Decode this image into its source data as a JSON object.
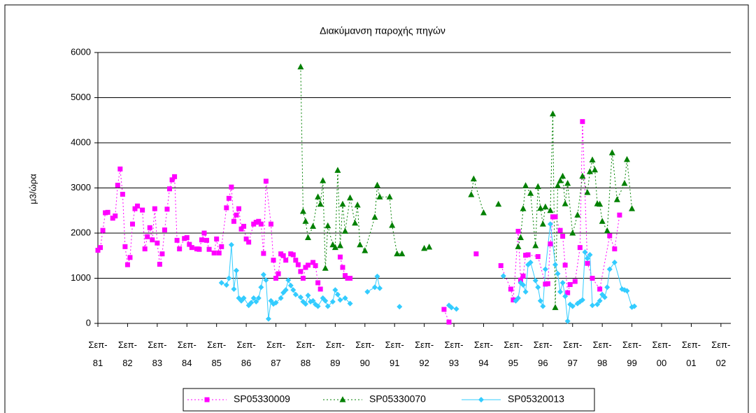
{
  "chart_data": {
    "type": "line",
    "title": "Διακύμανση παροχής πηγών",
    "ylabel": "μ3/ώρα",
    "xlim": [
      "1981-09",
      "2003-01"
    ],
    "xticks": [
      {
        "value": "1981-09",
        "label": "Σεπ-81"
      },
      {
        "value": "1982-09",
        "label": "Σεπ-82"
      },
      {
        "value": "1983-09",
        "label": "Σεπ-83"
      },
      {
        "value": "1984-09",
        "label": "Σεπ-84"
      },
      {
        "value": "1985-09",
        "label": "Σεπ-85"
      },
      {
        "value": "1986-09",
        "label": "Σεπ-86"
      },
      {
        "value": "1987-09",
        "label": "Σεπ-87"
      },
      {
        "value": "1988-09",
        "label": "Σεπ-88"
      },
      {
        "value": "1989-09",
        "label": "Σεπ-89"
      },
      {
        "value": "1990-09",
        "label": "Σεπ-90"
      },
      {
        "value": "1991-09",
        "label": "Σεπ-91"
      },
      {
        "value": "1992-09",
        "label": "Σεπ-92"
      },
      {
        "value": "1993-09",
        "label": "Σεπ-93"
      },
      {
        "value": "1994-09",
        "label": "Σεπ-94"
      },
      {
        "value": "1995-09",
        "label": "Σεπ-95"
      },
      {
        "value": "1996-09",
        "label": "Σεπ-96"
      },
      {
        "value": "1997-09",
        "label": "Σεπ-97"
      },
      {
        "value": "1998-09",
        "label": "Σεπ-98"
      },
      {
        "value": "1999-09",
        "label": "Σεπ-99"
      },
      {
        "value": "2000-09",
        "label": "Σεπ-00"
      },
      {
        "value": "2001-09",
        "label": "Σεπ-01"
      },
      {
        "value": "2002-09",
        "label": "Σεπ-02"
      }
    ],
    "ylim": [
      0,
      6000
    ],
    "yticks": [
      0,
      1000,
      2000,
      3000,
      4000,
      5000,
      6000
    ],
    "grid": true,
    "legend": "bottom",
    "series": [
      {
        "name": "SP05330009",
        "color": "#ff00ff",
        "marker": "square",
        "line_style": "dotted",
        "x": [
          "1981-09",
          "1981-10",
          "1981-11",
          "1981-12",
          "1982-01",
          "1982-03",
          "1982-04",
          "1982-05",
          "1982-06",
          "1982-07",
          "1982-08",
          "1982-09",
          "1982-10",
          "1982-11",
          "1982-12",
          "1983-01",
          "1983-03",
          "1983-04",
          "1983-05",
          "1983-06",
          "1983-07",
          "1983-08",
          "1983-09",
          "1983-10",
          "1983-11",
          "1983-12",
          "1984-01",
          "1984-02",
          "1984-03",
          "1984-04",
          "1984-05",
          "1984-06",
          "1984-08",
          "1984-09",
          "1984-10",
          "1984-11",
          "1985-01",
          "1985-02",
          "1985-03",
          "1985-04",
          "1985-05",
          "1985-06",
          "1985-08",
          "1985-09",
          "1985-10",
          "1985-11",
          "1986-01",
          "1986-02",
          "1986-03",
          "1986-04",
          "1986-05",
          "1986-06",
          "1986-07",
          "1986-08",
          "1986-09",
          "1986-10",
          "1986-12",
          "1987-01",
          "1987-02",
          "1987-03",
          "1987-04",
          "1987-05",
          "1987-07",
          "1987-08",
          "1987-09",
          "1987-10",
          "1987-11",
          "1987-12",
          "1988-01",
          "1988-03",
          "1988-04",
          "1988-05",
          "1988-06",
          "1988-07",
          "1988-08",
          "1988-09",
          "1988-10",
          "1988-12",
          "1989-01",
          "1989-02",
          "1989-03",
          "1989-07",
          "1989-11",
          "1989-12",
          "1990-01",
          "1990-02",
          "1990-03",
          "1991-09",
          "1993-05",
          "1993-07",
          "1994-01",
          "1994-06",
          "1995-01",
          "1995-04",
          "1995-08",
          "1995-09",
          "1995-11",
          "1995-12",
          "1996-01",
          "1996-02",
          "1996-03",
          "1996-07",
          "1996-10",
          "1996-11",
          "1996-12",
          "1997-01",
          "1997-02",
          "1997-04",
          "1997-05",
          "1997-06",
          "1997-07",
          "1997-08",
          "1997-10",
          "1997-12",
          "1998-01",
          "1998-03",
          "1998-05",
          "1998-08",
          "1998-12",
          "1999-02",
          "1999-04"
        ],
        "values": [
          1620,
          1680,
          2060,
          2450,
          2460,
          2330,
          2380,
          3060,
          3420,
          2860,
          1700,
          1300,
          1460,
          2200,
          2540,
          2600,
          2510,
          1650,
          1920,
          2120,
          1850,
          2540,
          1780,
          1310,
          1540,
          2070,
          2530,
          2980,
          3180,
          3250,
          1840,
          1650,
          1880,
          1900,
          1750,
          1680,
          1650,
          1640,
          1850,
          2000,
          1840,
          1640,
          1560,
          1870,
          1560,
          1700,
          2560,
          2770,
          3020,
          2260,
          2400,
          2540,
          2090,
          2150,
          1870,
          1800,
          2200,
          2240,
          2260,
          2200,
          1550,
          3150,
          2200,
          1400,
          1000,
          1100,
          1540,
          1500,
          1400,
          1540,
          1520,
          1400,
          1300,
          1150,
          1000,
          1240,
          1290,
          1350,
          1280,
          900,
          760,
          null,
          1470,
          1240,
          1060,
          1000,
          1000,
          null,
          310,
          30,
          null,
          1540,
          null,
          1280,
          760,
          520,
          2040,
          960,
          1050,
          1510,
          1520,
          1480,
          870,
          880,
          1760,
          2360,
          2360,
          2060,
          1930,
          1290,
          680,
          860,
          930,
          1680,
          4470,
          1330,
          1000,
          760,
          1940,
          1650,
          2400
        ]
      },
      {
        "name": "SP05330070",
        "color": "#008000",
        "marker": "triangle",
        "line_style": "dotted",
        "x": [
          "1988-07",
          "1988-08",
          "1988-09",
          "1988-10",
          "1988-12",
          "1989-02",
          "1989-03",
          "1989-04",
          "1989-05",
          "1989-06",
          "1989-08",
          "1989-09",
          "1989-10",
          "1989-11",
          "1989-12",
          "1990-01",
          "1990-03",
          "1990-05",
          "1990-06",
          "1990-07",
          "1990-09",
          "1991-01",
          "1991-02",
          "1991-03",
          "1991-07",
          "1991-08",
          "1991-10",
          "1991-12",
          "1992-04",
          "1992-09",
          "1992-11",
          "1993-09",
          "1994-04",
          "1994-05",
          "1994-09",
          "1994-12",
          "1995-03",
          "1995-07",
          "1995-11",
          "1995-12",
          "1996-01",
          "1996-02",
          "1996-04",
          "1996-06",
          "1996-07",
          "1996-08",
          "1996-09",
          "1996-10",
          "1996-12",
          "1997-01",
          "1997-02",
          "1997-03",
          "1997-04",
          "1997-05",
          "1997-06",
          "1997-07",
          "1997-09",
          "1997-11",
          "1998-01",
          "1998-03",
          "1998-04",
          "1998-05",
          "1998-06",
          "1998-07",
          "1998-08",
          "1998-09",
          "1998-11",
          "1999-01",
          "1999-03",
          "1999-06",
          "1999-07",
          "1999-09"
        ],
        "values": [
          5680,
          2480,
          2260,
          1900,
          2150,
          2800,
          2640,
          3160,
          1220,
          2160,
          1740,
          1680,
          3390,
          1720,
          2640,
          2040,
          2780,
          2220,
          2620,
          1740,
          1610,
          2350,
          3060,
          2800,
          2800,
          2170,
          1540,
          1540,
          null,
          1660,
          1690,
          null,
          2850,
          3200,
          2450,
          null,
          2640,
          null,
          1700,
          1900,
          2540,
          3050,
          2880,
          1720,
          3030,
          2550,
          2200,
          2580,
          2500,
          4640,
          350,
          3050,
          3160,
          3260,
          2650,
          3100,
          2000,
          2400,
          3260,
          2900,
          3360,
          3620,
          3400,
          2650,
          2640,
          2260,
          2050,
          3780,
          2740,
          3100,
          3630,
          2540
        ]
      },
      {
        "name": "SP05320013",
        "color": "#33ccff",
        "marker": "diamond",
        "line_style": "solid",
        "x": [
          "1985-11",
          "1986-01",
          "1986-02",
          "1986-03",
          "1986-04",
          "1986-05",
          "1986-06",
          "1986-07",
          "1986-08",
          "1986-10",
          "1986-11",
          "1986-12",
          "1987-01",
          "1987-02",
          "1987-03",
          "1987-04",
          "1987-05",
          "1987-06",
          "1987-07",
          "1987-08",
          "1987-09",
          "1987-11",
          "1987-12",
          "1988-01",
          "1988-02",
          "1988-03",
          "1988-04",
          "1988-05",
          "1988-07",
          "1988-08",
          "1988-09",
          "1988-10",
          "1988-11",
          "1988-12",
          "1989-01",
          "1989-02",
          "1989-04",
          "1989-05",
          "1989-06",
          "1989-08",
          "1989-09",
          "1989-10",
          "1989-11",
          "1990-01",
          "1990-03",
          "1990-06",
          "1990-10",
          "1991-01",
          "1991-02",
          "1991-03",
          "1991-06",
          "1991-11",
          "1992-06",
          "1993-07",
          "1993-08",
          "1993-10",
          "1994-06",
          "1995-05",
          "1995-07",
          "1995-10",
          "1995-11",
          "1995-12",
          "1996-01",
          "1996-02",
          "1996-03",
          "1996-04",
          "1996-06",
          "1996-07",
          "1996-08",
          "1996-09",
          "1996-10",
          "1996-12",
          "1997-02",
          "1997-03",
          "1997-04",
          "1997-05",
          "1997-06",
          "1997-07",
          "1997-08",
          "1997-09",
          "1997-11",
          "1997-12",
          "1998-01",
          "1998-02",
          "1998-03",
          "1998-04",
          "1998-05",
          "1998-07",
          "1998-08",
          "1998-09",
          "1998-10",
          "1998-11",
          "1998-12",
          "1999-02",
          "1999-05",
          "1999-06",
          "1999-07",
          "1999-09",
          "1999-10"
        ],
        "values": [
          900,
          850,
          1000,
          1740,
          760,
          1170,
          560,
          500,
          560,
          400,
          460,
          560,
          480,
          560,
          800,
          1080,
          960,
          100,
          500,
          430,
          460,
          560,
          680,
          740,
          960,
          840,
          740,
          640,
          580,
          480,
          430,
          620,
          480,
          500,
          420,
          380,
          560,
          500,
          380,
          480,
          740,
          640,
          520,
          560,
          440,
          null,
          700,
          800,
          1040,
          780,
          null,
          370,
          null,
          400,
          350,
          320,
          null,
          1050,
          null,
          500,
          560,
          900,
          850,
          700,
          1300,
          1350,
          950,
          800,
          500,
          380,
          1200,
          2200,
          1300,
          1100,
          700,
          900,
          600,
          50,
          420,
          380,
          440,
          480,
          520,
          1580,
          1440,
          1520,
          400,
          420,
          500,
          640,
          580,
          800,
          1200,
          1350,
          760,
          740,
          720,
          360,
          380
        ]
      }
    ]
  }
}
